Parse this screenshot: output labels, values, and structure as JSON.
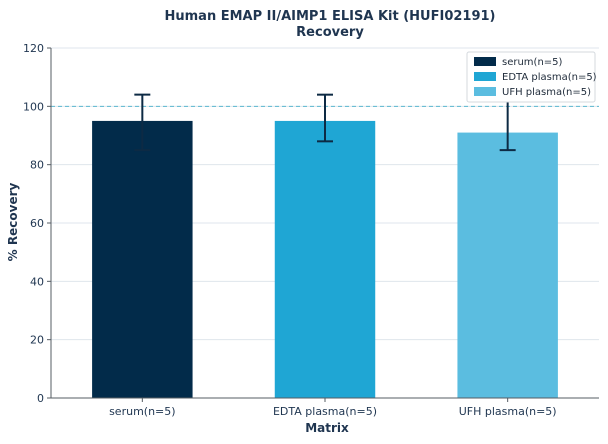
{
  "chart_data": {
    "type": "bar",
    "title": "Human EMAP II/AIMP1 ELISA Kit (HUFI02191)",
    "subtitle": "Recovery",
    "xlabel": "Matrix",
    "ylabel": "% Recovery",
    "ylim": [
      0,
      120
    ],
    "yticks": [
      0,
      20,
      40,
      60,
      80,
      100,
      120
    ],
    "categories": [
      "serum(n=5)",
      "EDTA plasma(n=5)",
      "UFH plasma(n=5)"
    ],
    "values": [
      95,
      95,
      91
    ],
    "error_low": [
      85,
      88,
      85
    ],
    "error_high": [
      104,
      104,
      102
    ],
    "colors": [
      "#022b4a",
      "#1fa6d4",
      "#5bbde0"
    ],
    "reference_line": {
      "y": 100,
      "style": "dashed",
      "color": "#5bb8cf"
    },
    "legend": {
      "placement": "top-right",
      "entries": [
        "serum(n=5)",
        "EDTA plasma(n=5)",
        "UFH plasma(n=5)"
      ]
    },
    "grid": {
      "y": true,
      "x": false
    }
  }
}
